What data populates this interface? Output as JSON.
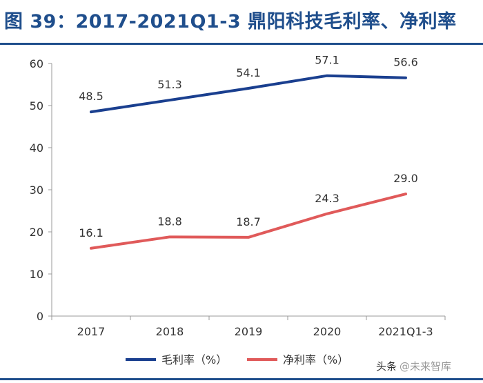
{
  "title": "图 39：2017-2021Q1-3 鼎阳科技毛利率、净利率",
  "watermark": {
    "prefix": "头条",
    "handle": "@未来智库"
  },
  "colors": {
    "title": "#1f4e8c",
    "gross": "#1a3f8f",
    "net": "#e05a5a",
    "axis": "#333333"
  },
  "chart_data": {
    "type": "line",
    "categories": [
      "2017",
      "2018",
      "2019",
      "2020",
      "2021Q1-3"
    ],
    "ylim": [
      0,
      60
    ],
    "yticks": [
      0,
      10,
      20,
      30,
      40,
      50,
      60
    ],
    "grid": false,
    "legend_position": "bottom",
    "series": [
      {
        "name": "毛利率（%）",
        "values": [
          48.5,
          51.3,
          54.1,
          57.1,
          56.6
        ],
        "labels": [
          "48.5",
          "51.3",
          "54.1",
          "57.1",
          "56.6"
        ],
        "color": "#1a3f8f"
      },
      {
        "name": "净利率（%）",
        "values": [
          16.1,
          18.8,
          18.7,
          24.3,
          29.0
        ],
        "labels": [
          "16.1",
          "18.8",
          "18.7",
          "24.3",
          "29.0"
        ],
        "color": "#e05a5a"
      }
    ]
  }
}
